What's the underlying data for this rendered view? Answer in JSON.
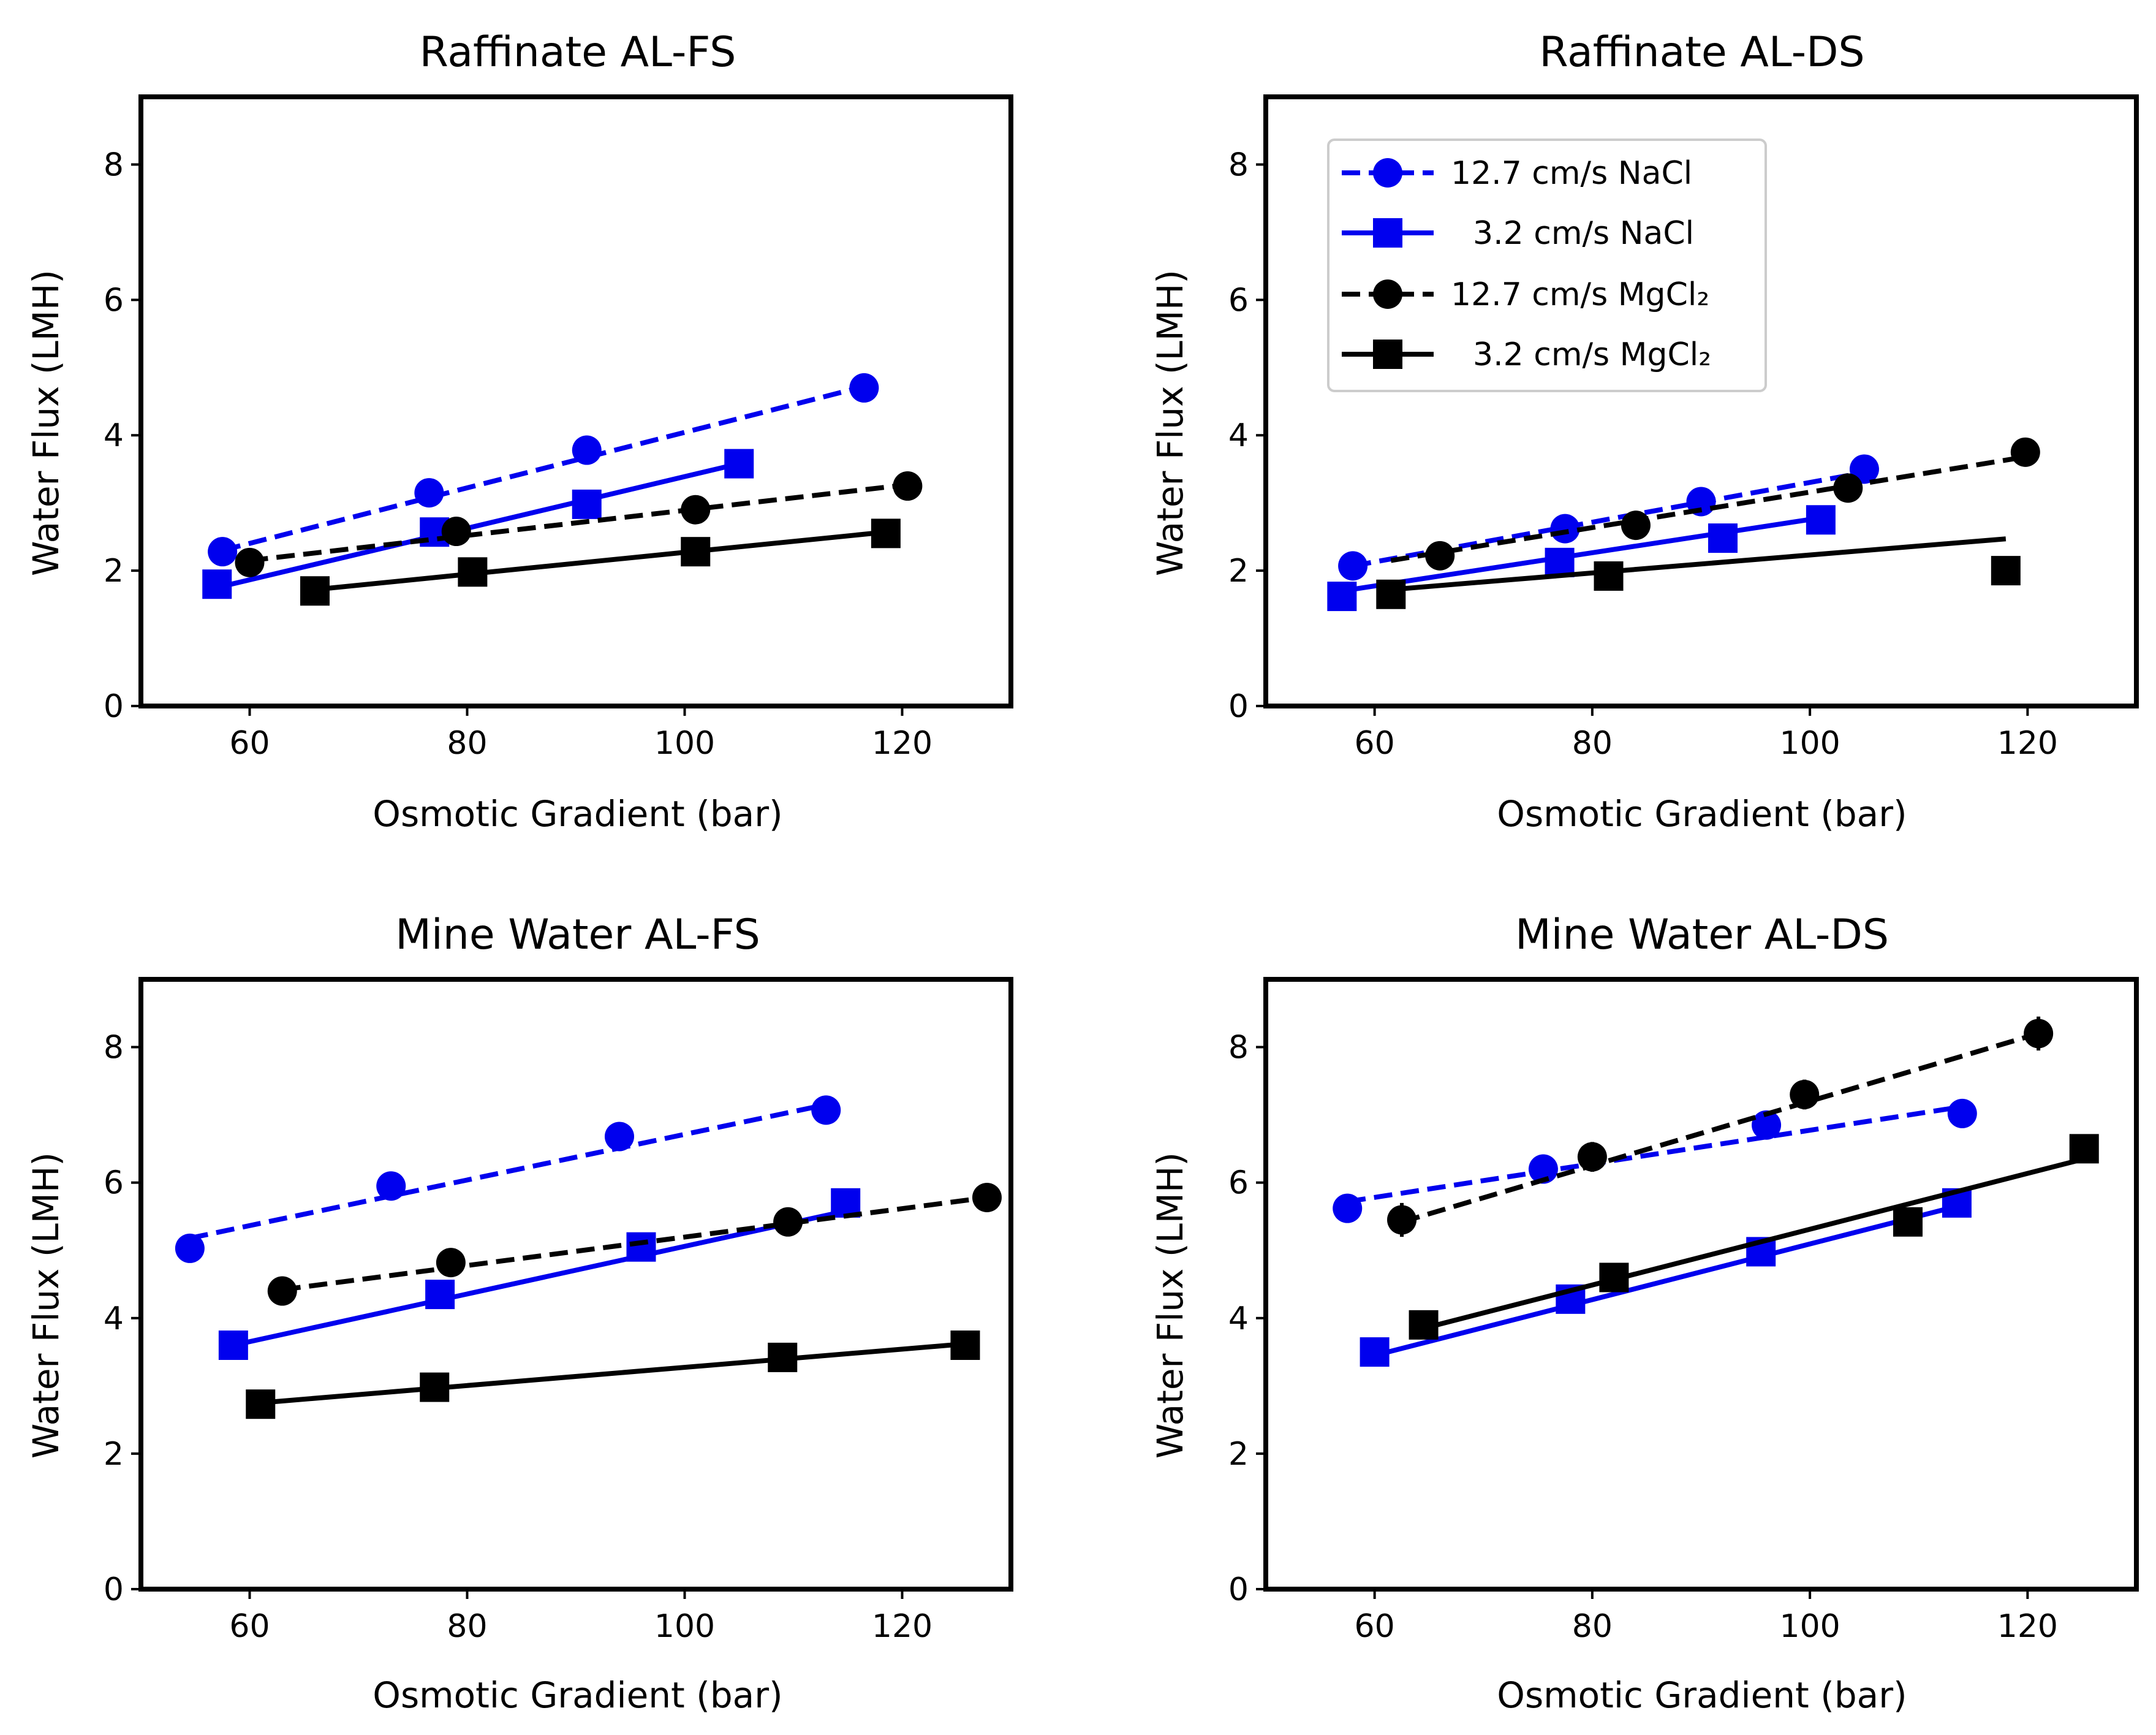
{
  "chart_data": [
    {
      "type": "line",
      "title": "Raffinate AL-FS",
      "xlabel": "Osmotic Gradient (bar)",
      "ylabel": "Water Flux (LMH)",
      "xlim": [
        50,
        130
      ],
      "ylim": [
        0,
        9
      ],
      "xticks": [
        "60",
        "80",
        "100",
        "120"
      ],
      "yticks": [
        "0",
        "2",
        "4",
        "6",
        "8"
      ],
      "series": [
        {
          "name": "12.7 cm/s NaCl",
          "color": "#0000ee",
          "marker": "circle",
          "dash": true,
          "x": [
            57.5,
            76.5,
            91,
            116.5
          ],
          "y": [
            2.28,
            3.15,
            3.78,
            4.7
          ],
          "err": [
            0,
            0,
            0,
            0
          ],
          "fit": [
            [
              57.5,
              2.3
            ],
            [
              116.5,
              4.72
            ]
          ]
        },
        {
          "name": "3.2 cm/s NaCl",
          "color": "#0000ee",
          "marker": "square",
          "dash": false,
          "x": [
            57,
            77,
            91,
            105
          ],
          "y": [
            1.8,
            2.57,
            2.98,
            3.58
          ],
          "err": [
            0,
            0,
            0,
            0
          ],
          "fit": [
            [
              57,
              1.75
            ],
            [
              105,
              3.58
            ]
          ]
        },
        {
          "name": "12.7 cm/s MgCl₂",
          "color": "#000000",
          "marker": "circle",
          "dash": true,
          "x": [
            60,
            79,
            101,
            120.5
          ],
          "y": [
            2.12,
            2.58,
            2.9,
            3.25
          ],
          "err": [
            0,
            0,
            0,
            0
          ],
          "fit": [
            [
              60,
              2.15
            ],
            [
              120.5,
              3.27
            ]
          ]
        },
        {
          "name": "3.2 cm/s MgCl₂",
          "color": "#000000",
          "marker": "square",
          "dash": false,
          "x": [
            66,
            80.5,
            101,
            118.5
          ],
          "y": [
            1.7,
            1.98,
            2.28,
            2.55
          ],
          "err": [
            0,
            0,
            0,
            0
          ],
          "fit": [
            [
              66,
              1.72
            ],
            [
              118.5,
              2.57
            ]
          ]
        }
      ]
    },
    {
      "type": "line",
      "title": "Raffinate AL-DS",
      "xlabel": "Osmotic Gradient (bar)",
      "ylabel": "Water Flux (LMH)",
      "xlim": [
        50,
        130
      ],
      "ylim": [
        0,
        9
      ],
      "xticks": [
        "60",
        "80",
        "100",
        "120"
      ],
      "yticks": [
        "0",
        "2",
        "4",
        "6",
        "8"
      ],
      "legend_position": "upper-left",
      "series": [
        {
          "name": "12.7 cm/s NaCl",
          "color": "#0000ee",
          "marker": "circle",
          "dash": true,
          "x": [
            58,
            77.5,
            90,
            105
          ],
          "y": [
            2.07,
            2.62,
            3.02,
            3.5
          ],
          "err": [
            0,
            0,
            0,
            0
          ],
          "fit": [
            [
              58,
              2.07
            ],
            [
              105,
              3.45
            ]
          ]
        },
        {
          "name": "3.2 cm/s NaCl",
          "color": "#0000ee",
          "marker": "square",
          "dash": false,
          "x": [
            57,
            77,
            92,
            101
          ],
          "y": [
            1.62,
            2.12,
            2.48,
            2.75
          ],
          "err": [
            0,
            0,
            0,
            0
          ],
          "fit": [
            [
              57,
              1.7
            ],
            [
              101,
              2.78
            ]
          ]
        },
        {
          "name": "12.7 cm/s MgCl₂",
          "color": "#000000",
          "marker": "circle",
          "dash": true,
          "x": [
            66,
            84,
            103.5,
            119.8
          ],
          "y": [
            2.22,
            2.67,
            3.22,
            3.75
          ],
          "err": [
            0,
            0,
            0.12,
            0
          ],
          "fit": [
            [
              61.5,
              2.15
            ],
            [
              119.8,
              3.68
            ]
          ]
        },
        {
          "name": "3.2 cm/s MgCl₂",
          "color": "#000000",
          "marker": "square",
          "dash": false,
          "x": [
            61.5,
            81.5,
            118
          ],
          "y": [
            1.65,
            1.92,
            2.0
          ],
          "err": [
            0,
            0,
            0
          ],
          "fit": [
            [
              61.5,
              1.72
            ],
            [
              118,
              2.47
            ]
          ]
        }
      ],
      "legend": [
        {
          "label": "12.7 cm/s NaCl",
          "color": "#0000ee",
          "marker": "circle",
          "dash": true
        },
        {
          "label": "3.2 cm/s NaCl",
          "color": "#0000ee",
          "marker": "square",
          "dash": false
        },
        {
          "label": "12.7 cm/s MgCl₂",
          "color": "#000000",
          "marker": "circle",
          "dash": true
        },
        {
          "label": "3.2 cm/s MgCl₂",
          "color": "#000000",
          "marker": "square",
          "dash": false
        }
      ]
    },
    {
      "type": "line",
      "title": "Mine Water AL-FS",
      "xlabel": "Osmotic Gradient (bar)",
      "ylabel": "Water Flux (LMH)",
      "xlim": [
        50,
        130
      ],
      "ylim": [
        0,
        9
      ],
      "xticks": [
        "60",
        "80",
        "100",
        "120"
      ],
      "yticks": [
        "0",
        "2",
        "4",
        "6",
        "8"
      ],
      "series": [
        {
          "name": "12.7 cm/s NaCl",
          "color": "#0000ee",
          "marker": "circle",
          "dash": true,
          "x": [
            54.5,
            73,
            94,
            113
          ],
          "y": [
            5.03,
            5.95,
            6.68,
            7.07
          ],
          "err": [
            0.2,
            0,
            0,
            0
          ],
          "fit": [
            [
              54.5,
              5.18
            ],
            [
              113,
              7.15
            ]
          ]
        },
        {
          "name": "3.2 cm/s NaCl",
          "color": "#0000ee",
          "marker": "square",
          "dash": false,
          "x": [
            58.5,
            77.5,
            96,
            114.8
          ],
          "y": [
            3.6,
            4.35,
            5.05,
            5.7
          ],
          "err": [
            0,
            0,
            0,
            0
          ],
          "fit": [
            [
              58.5,
              3.6
            ],
            [
              114.8,
              5.58
            ]
          ]
        },
        {
          "name": "12.7 cm/s MgCl₂",
          "color": "#000000",
          "marker": "circle",
          "dash": true,
          "x": [
            63,
            78.5,
            109.5,
            127.8
          ],
          "y": [
            4.4,
            4.82,
            5.42,
            5.78
          ],
          "err": [
            0.18,
            0,
            0,
            0
          ],
          "fit": [
            [
              63,
              4.42
            ],
            [
              127.8,
              5.78
            ]
          ]
        },
        {
          "name": "3.2 cm/s MgCl₂",
          "color": "#000000",
          "marker": "square",
          "dash": false,
          "x": [
            61,
            77,
            109,
            125.8
          ],
          "y": [
            2.73,
            2.98,
            3.42,
            3.6
          ],
          "err": [
            0,
            0,
            0,
            0
          ],
          "fit": [
            [
              61,
              2.75
            ],
            [
              125.8,
              3.62
            ]
          ]
        }
      ]
    },
    {
      "type": "line",
      "title": "Mine Water AL-DS",
      "xlabel": "Osmotic Gradient (bar)",
      "ylabel": "Water Flux (LMH)",
      "xlim": [
        50,
        130
      ],
      "ylim": [
        0,
        9
      ],
      "xticks": [
        "60",
        "80",
        "100",
        "120"
      ],
      "yticks": [
        "0",
        "2",
        "4",
        "6",
        "8"
      ],
      "series": [
        {
          "name": "12.7 cm/s NaCl",
          "color": "#0000ee",
          "marker": "circle",
          "dash": true,
          "x": [
            57.5,
            75.5,
            96,
            114
          ],
          "y": [
            5.62,
            6.2,
            6.85,
            7.02
          ],
          "err": [
            0.18,
            0,
            0,
            0
          ],
          "fit": [
            [
              57.5,
              5.72
            ],
            [
              114,
              7.12
            ]
          ]
        },
        {
          "name": "3.2 cm/s NaCl",
          "color": "#0000ee",
          "marker": "square",
          "dash": false,
          "x": [
            60,
            78,
            95.5,
            113.5
          ],
          "y": [
            3.5,
            4.28,
            4.98,
            5.7
          ],
          "err": [
            0,
            0,
            0,
            0
          ],
          "fit": [
            [
              60,
              3.45
            ],
            [
              113.5,
              5.65
            ]
          ]
        },
        {
          "name": "12.7 cm/s MgCl₂",
          "color": "#000000",
          "marker": "circle",
          "dash": true,
          "x": [
            62.5,
            80,
            99.5,
            121
          ],
          "y": [
            5.45,
            6.38,
            7.3,
            8.2
          ],
          "err": [
            0.25,
            0.22,
            0.22,
            0.25
          ],
          "fit": [
            [
              62.5,
              5.42
            ],
            [
              121,
              8.2
            ]
          ]
        },
        {
          "name": "3.2 cm/s MgCl₂",
          "color": "#000000",
          "marker": "square",
          "dash": false,
          "x": [
            64.5,
            82,
            109,
            125.2
          ],
          "y": [
            3.9,
            4.6,
            5.42,
            6.5
          ],
          "err": [
            0,
            0,
            0,
            0
          ],
          "fit": [
            [
              64.5,
              3.85
            ],
            [
              125.2,
              6.35
            ]
          ]
        }
      ]
    }
  ]
}
